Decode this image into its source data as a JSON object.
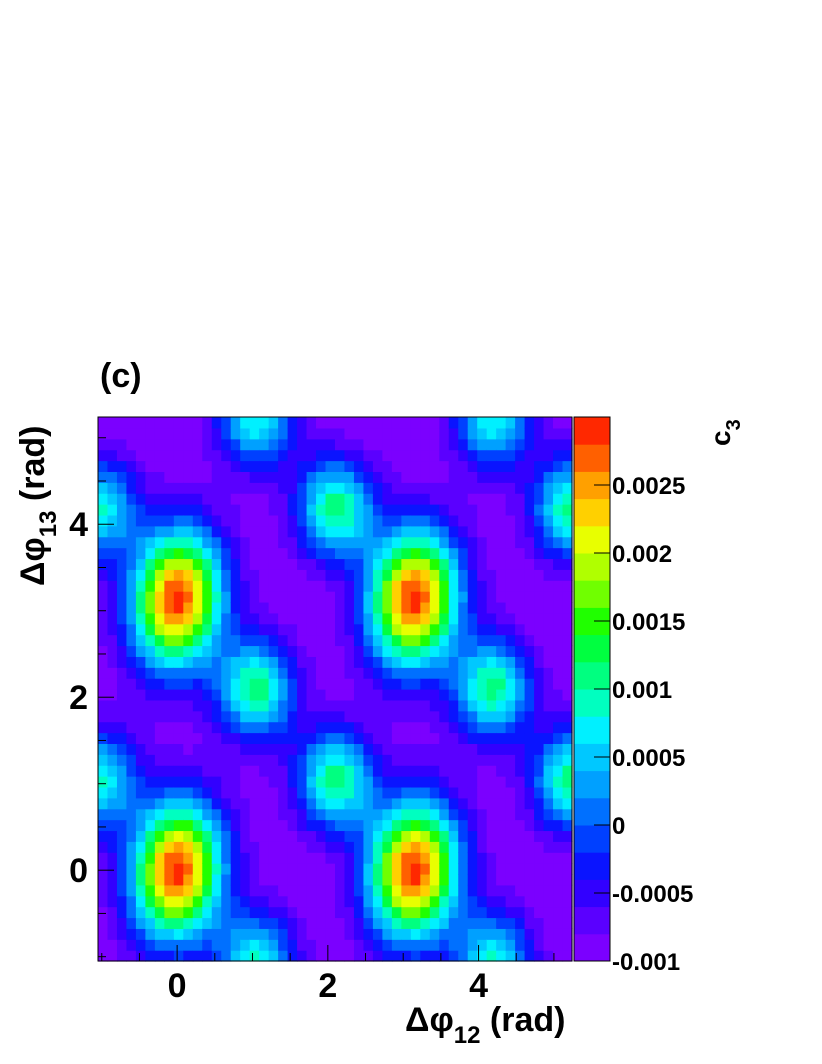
{
  "panel_label": "(c)",
  "chart_data": {
    "type": "heatmap",
    "xlabel": {
      "prefix": "Δφ",
      "sub": "12",
      "suffix": " (rad)"
    },
    "ylabel": {
      "prefix": "Δφ",
      "sub": "13",
      "suffix": " (rad)"
    },
    "zlabel": {
      "main": "c",
      "sub": "3"
    },
    "xlim": [
      -1.05,
      5.24
    ],
    "ylim": [
      -1.05,
      5.24
    ],
    "zlim": [
      -0.001,
      0.003
    ],
    "x_ticks": [
      0,
      2,
      4
    ],
    "x_tick_labels": [
      "0",
      "2",
      "4"
    ],
    "y_ticks": [
      0,
      2,
      4
    ],
    "y_tick_labels": [
      "0",
      "2",
      "4"
    ],
    "z_ticks": [
      -0.001,
      -0.0005,
      0,
      0.0005,
      0.001,
      0.0015,
      0.002,
      0.0025
    ],
    "z_tick_labels": [
      "-0.001",
      "-0.0005",
      "0",
      "0.0005",
      "0.001",
      "0.0015",
      "0.002",
      "0.0025"
    ],
    "bins": 50,
    "contour_levels": 20,
    "maxima": [
      {
        "x": 0,
        "y": 0,
        "value": 0.0029
      },
      {
        "x": 3.14,
        "y": 0,
        "value": 0.0029
      },
      {
        "x": 0,
        "y": 3.14,
        "value": 0.0029
      },
      {
        "x": 3.14,
        "y": 3.14,
        "value": 0.0029
      },
      {
        "x": 1.05,
        "y": 2.1,
        "value": 0.0011
      },
      {
        "x": 4.19,
        "y": 2.1,
        "value": 0.0011
      },
      {
        "x": 2.1,
        "y": 1.05,
        "value": 0.0011
      },
      {
        "x": 5.24,
        "y": 1.05,
        "value": 0.0011
      },
      {
        "x": 2.1,
        "y": 4.19,
        "value": 0.0011
      },
      {
        "x": 5.24,
        "y": 4.19,
        "value": 0.0011
      },
      {
        "x": 1.05,
        "y": 5.24,
        "value": 0.0008
      },
      {
        "x": 4.19,
        "y": 5.24,
        "value": 0.0008
      },
      {
        "x": 1.05,
        "y": -1.05,
        "value": 0.0008
      },
      {
        "x": 4.19,
        "y": -1.05,
        "value": 0.0008
      },
      {
        "x": -1.05,
        "y": 1.05,
        "value": 0.0008
      },
      {
        "x": -1.05,
        "y": 4.19,
        "value": 0.0008
      }
    ],
    "minimum_value": -0.001,
    "palette": [
      "#7b00ff",
      "#5a00ff",
      "#3200ff",
      "#0a14ff",
      "#0040ff",
      "#0070ff",
      "#00a0ff",
      "#00c8ff",
      "#00f0ff",
      "#00ffc0",
      "#00ff80",
      "#00ff40",
      "#20ff00",
      "#70ff00",
      "#b0ff00",
      "#e8ff00",
      "#ffd000",
      "#ffa000",
      "#ff6000",
      "#ff2800",
      "#ff0000"
    ],
    "grid": false
  }
}
